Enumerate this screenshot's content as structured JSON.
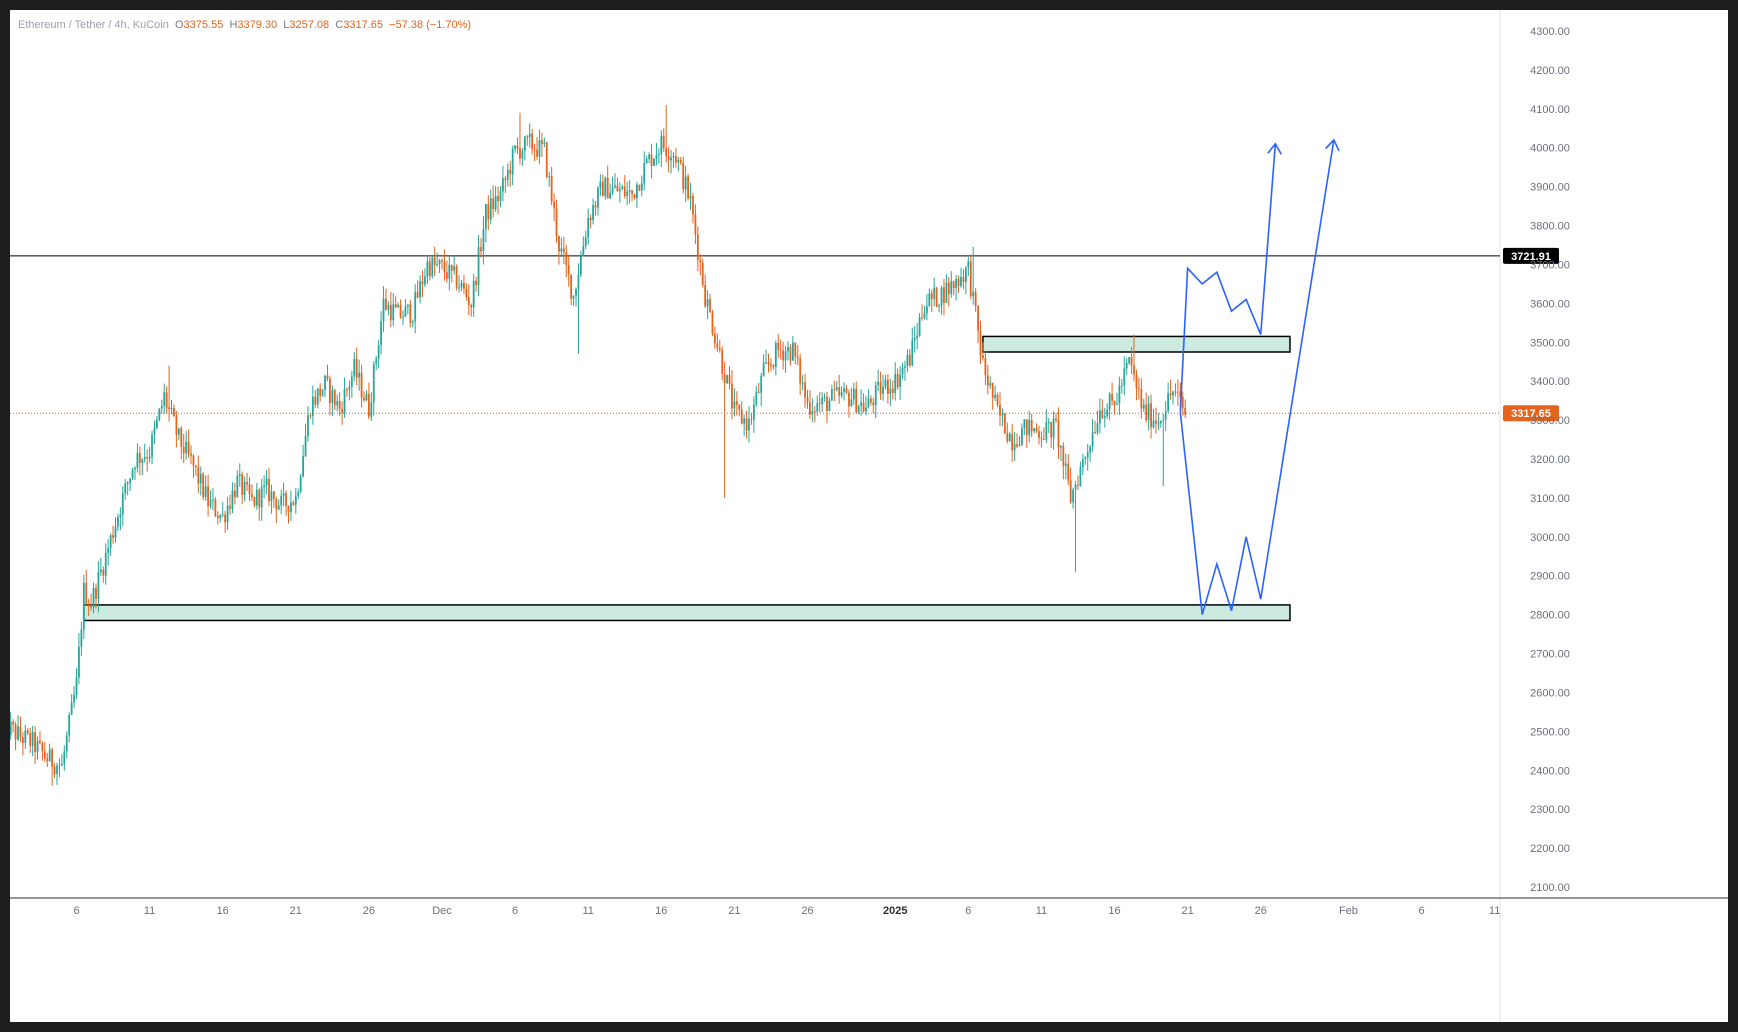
{
  "chart": {
    "symbol": "Ethereum / Tether",
    "interval": "4h",
    "exchange": "KuCoin",
    "ohlc": {
      "o": "3375.55",
      "h": "3379.30",
      "l": "3257.08",
      "c": "3317.65",
      "change": "−57.38",
      "change_pct": "(−1.70%)"
    },
    "labels": {
      "o": "O",
      "h": "H",
      "l": "L",
      "c": "C"
    }
  },
  "chart_data": {
    "type": "candlestick",
    "title": "",
    "y_axis": {
      "min": 2100,
      "max": 4300,
      "ticks": [
        "2100.00",
        "2200.00",
        "2300.00",
        "2400.00",
        "2500.00",
        "2600.00",
        "2700.00",
        "2800.00",
        "2900.00",
        "3000.00",
        "3100.00",
        "3200.00",
        "3300.00",
        "3400.00",
        "3500.00",
        "3600.00",
        "3700.00",
        "3800.00",
        "3900.00",
        "4000.00",
        "4100.00",
        "4200.00",
        "4300.00"
      ]
    },
    "x_axis": {
      "ticks": [
        {
          "label": "6",
          "date": "2024-11-06"
        },
        {
          "label": "11",
          "date": "2024-11-11"
        },
        {
          "label": "16",
          "date": "2024-11-16"
        },
        {
          "label": "21",
          "date": "2024-11-21"
        },
        {
          "label": "26",
          "date": "2024-11-26"
        },
        {
          "label": "Dec",
          "date": "2024-12-01"
        },
        {
          "label": "6",
          "date": "2024-12-06"
        },
        {
          "label": "11",
          "date": "2024-12-11"
        },
        {
          "label": "16",
          "date": "2024-12-16"
        },
        {
          "label": "21",
          "date": "2024-12-21"
        },
        {
          "label": "26",
          "date": "2024-12-26"
        },
        {
          "label": "2025",
          "date": "2025-01-01",
          "bold": true
        },
        {
          "label": "6",
          "date": "2025-01-06"
        },
        {
          "label": "11",
          "date": "2025-01-11"
        },
        {
          "label": "16",
          "date": "2025-01-16"
        },
        {
          "label": "21",
          "date": "2025-01-21"
        },
        {
          "label": "26",
          "date": "2025-01-26"
        },
        {
          "label": "Feb",
          "date": "2025-02-01"
        },
        {
          "label": "6",
          "date": "2025-02-06"
        },
        {
          "label": "11",
          "date": "2025-02-11"
        }
      ]
    },
    "price_path": [
      [
        "2024-11-01",
        2520
      ],
      [
        "2024-11-02",
        2490
      ],
      [
        "2024-11-03",
        2470
      ],
      [
        "2024-11-04",
        2430
      ],
      [
        "2024-11-05",
        2410
      ],
      [
        "2024-11-06",
        2620
      ],
      [
        "2024-11-06 12:00",
        2860
      ],
      [
        "2024-11-07",
        2830
      ],
      [
        "2024-11-08",
        2950
      ],
      [
        "2024-11-09",
        3080
      ],
      [
        "2024-11-10",
        3200
      ],
      [
        "2024-11-11",
        3220
      ],
      [
        "2024-11-12",
        3360
      ],
      [
        "2024-11-13",
        3250
      ],
      [
        "2024-11-14",
        3180
      ],
      [
        "2024-11-15",
        3090
      ],
      [
        "2024-11-16",
        3050
      ],
      [
        "2024-11-17",
        3140
      ],
      [
        "2024-11-18",
        3090
      ],
      [
        "2024-11-19",
        3120
      ],
      [
        "2024-11-20",
        3080
      ],
      [
        "2024-11-21",
        3100
      ],
      [
        "2024-11-22",
        3340
      ],
      [
        "2024-11-23",
        3390
      ],
      [
        "2024-11-24",
        3330
      ],
      [
        "2024-11-25",
        3430
      ],
      [
        "2024-11-26",
        3330
      ],
      [
        "2024-11-27",
        3600
      ],
      [
        "2024-11-28",
        3570
      ],
      [
        "2024-11-29",
        3580
      ],
      [
        "2024-11-30",
        3700
      ],
      [
        "2024-12-01",
        3690
      ],
      [
        "2024-12-02",
        3660
      ],
      [
        "2024-12-03",
        3600
      ],
      [
        "2024-12-04",
        3830
      ],
      [
        "2024-12-05",
        3880
      ],
      [
        "2024-12-06",
        3990
      ],
      [
        "2024-12-07",
        4010
      ],
      [
        "2024-12-08",
        3990
      ],
      [
        "2024-12-09",
        3750
      ],
      [
        "2024-12-10",
        3620
      ],
      [
        "2024-12-11",
        3820
      ],
      [
        "2024-12-12",
        3900
      ],
      [
        "2024-12-13",
        3890
      ],
      [
        "2024-12-14",
        3880
      ],
      [
        "2024-12-15",
        3960
      ],
      [
        "2024-12-16",
        4010
      ],
      [
        "2024-12-17",
        3980
      ],
      [
        "2024-12-18",
        3860
      ],
      [
        "2024-12-19",
        3620
      ],
      [
        "2024-12-20",
        3470
      ],
      [
        "2024-12-21",
        3320
      ],
      [
        "2024-12-22",
        3290
      ],
      [
        "2024-12-23",
        3420
      ],
      [
        "2024-12-24",
        3480
      ],
      [
        "2024-12-25",
        3480
      ],
      [
        "2024-12-26",
        3340
      ],
      [
        "2024-12-27",
        3340
      ],
      [
        "2024-12-28",
        3360
      ],
      [
        "2024-12-29",
        3360
      ],
      [
        "2024-12-30",
        3330
      ],
      [
        "2024-12-31",
        3380
      ],
      [
        "2025-01-01",
        3400
      ],
      [
        "2025-01-02",
        3460
      ],
      [
        "2025-01-03",
        3600
      ],
      [
        "2025-01-04",
        3620
      ],
      [
        "2025-01-05",
        3650
      ],
      [
        "2025-01-06",
        3690
      ],
      [
        "2025-01-07",
        3440
      ],
      [
        "2025-01-08",
        3320
      ],
      [
        "2025-01-09",
        3250
      ],
      [
        "2025-01-10",
        3280
      ],
      [
        "2025-01-11",
        3270
      ],
      [
        "2025-01-12",
        3280
      ],
      [
        "2025-01-13",
        3100
      ],
      [
        "2025-01-14",
        3210
      ],
      [
        "2025-01-15",
        3330
      ],
      [
        "2025-01-16",
        3340
      ],
      [
        "2025-01-17",
        3450
      ],
      [
        "2025-01-18",
        3320
      ],
      [
        "2025-01-19",
        3300
      ],
      [
        "2025-01-20",
        3375.55
      ],
      [
        "2025-01-20 20:00",
        3317.65
      ]
    ],
    "wick_extremes": [
      [
        "2024-11-04",
        2360
      ],
      [
        "2024-11-12",
        3440
      ],
      [
        "2024-12-06",
        4090
      ],
      [
        "2024-12-10",
        3470
      ],
      [
        "2024-12-16",
        4110
      ],
      [
        "2024-12-20",
        3100
      ],
      [
        "2025-01-06",
        3745
      ],
      [
        "2025-01-13",
        2910
      ],
      [
        "2025-01-17",
        3520
      ],
      [
        "2025-01-19",
        3130
      ]
    ],
    "horizontal_lines": [
      {
        "price": 3721.91,
        "label": "3721.91",
        "color": "#000000",
        "style": "solid"
      },
      {
        "price": 3317.65,
        "label": "3317.65",
        "color": "#e4631d",
        "style": "dotted"
      }
    ],
    "zones": [
      {
        "from": "2024-11-06 12:00",
        "to": "2025-01-28",
        "low": 2785,
        "high": 2825,
        "fill": "#cdeae1"
      },
      {
        "from": "2025-01-07",
        "to": "2025-01-28",
        "low": 3475,
        "high": 3515,
        "fill": "#cdeae1"
      }
    ],
    "projections": [
      {
        "color": "#2962ff",
        "points": [
          [
            "2025-01-20 12:00",
            3320
          ],
          [
            "2025-01-21",
            3690
          ],
          [
            "2025-01-22",
            3650
          ],
          [
            "2025-01-23",
            3680
          ],
          [
            "2025-01-24",
            3580
          ],
          [
            "2025-01-25",
            3610
          ],
          [
            "2025-01-26",
            3520
          ],
          [
            "2025-01-27",
            4010
          ]
        ]
      },
      {
        "color": "#2962ff",
        "points": [
          [
            "2025-01-20 12:00",
            3320
          ],
          [
            "2025-01-22",
            2800
          ],
          [
            "2025-01-23",
            2930
          ],
          [
            "2025-01-24",
            2810
          ],
          [
            "2025-01-25",
            3000
          ],
          [
            "2025-01-26",
            2840
          ],
          [
            "2025-01-31",
            4020
          ]
        ]
      }
    ],
    "colors": {
      "up": "#26a69a",
      "down": "#e4631d",
      "zone_fill": "#cdeae1",
      "projection": "#2962ff"
    }
  }
}
